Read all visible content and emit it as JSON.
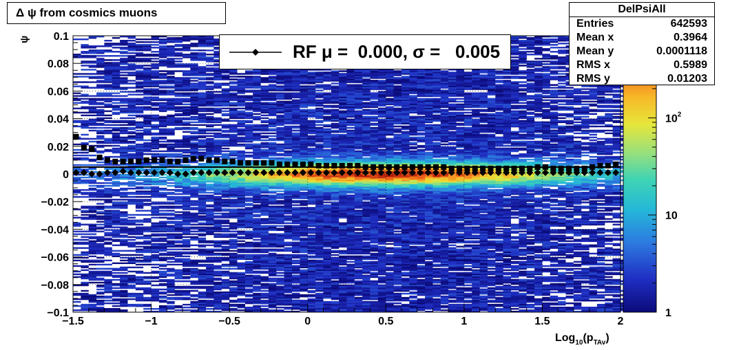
{
  "title": "Δ ψ from cosmics muons",
  "stats": {
    "name": "DelPsiAll",
    "rows": [
      {
        "label": "Entries",
        "value": "642593"
      },
      {
        "label": "Mean x",
        "value": "0.3964"
      },
      {
        "label": "Mean y",
        "value": "0.0001118"
      },
      {
        "label": "RMS x",
        "value": "0.5989"
      },
      {
        "label": "RMS y",
        "value": "0.01203"
      }
    ]
  },
  "legend": {
    "text": "RF μ =  0.000, σ =   0.005"
  },
  "colors": {
    "profile_markers": "#000000",
    "fit_line": "#000000"
  },
  "chart_data": {
    "type": "heatmap",
    "title": "Δ ψ from cosmics muons",
    "xlabel_main": "Log",
    "xlabel_sub": "10",
    "xlabel_paren": "(p",
    "xlabel_sub2": "TAv",
    "xlabel_close": ")",
    "ylabel": "ψ",
    "xlim": [
      -1.5,
      2
    ],
    "ylim": [
      -0.1,
      0.1
    ],
    "xticks": [
      "−1.5",
      "−1",
      "−0.5",
      "0",
      "0.5",
      "1",
      "1.5",
      "2"
    ],
    "xtick_values": [
      -1.5,
      -1,
      -0.5,
      0,
      0.5,
      1,
      1.5,
      2
    ],
    "yticks": [
      "−0.1",
      "−0.08",
      "−0.06",
      "−0.04",
      "−0.02",
      "0",
      "0.02",
      "0.04",
      "0.06",
      "0.08",
      "0.1"
    ],
    "ytick_values": [
      -0.1,
      -0.08,
      -0.06,
      -0.04,
      -0.02,
      0,
      0.02,
      0.04,
      0.06,
      0.08,
      0.1
    ],
    "z_scale": "log",
    "zlim": [
      1,
      700
    ],
    "zticks": [
      {
        "value": 1,
        "label": "1"
      },
      {
        "value": 10,
        "label": "10"
      },
      {
        "value": 100,
        "label": "10",
        "sup": "2"
      }
    ],
    "grid": true,
    "fit_line_y": 0.005,
    "series": [
      {
        "marker": "square",
        "x": [
          -1.48,
          -1.43,
          -1.38,
          -1.33,
          -1.28,
          -1.23,
          -1.18,
          -1.13,
          -1.08,
          -1.03,
          -0.98,
          -0.93,
          -0.88,
          -0.83,
          -0.78,
          -0.73,
          -0.68,
          -0.63,
          -0.58,
          -0.53,
          -0.48,
          -0.43,
          -0.38,
          -0.33,
          -0.28,
          -0.23,
          -0.18,
          -0.13,
          -0.08,
          -0.03,
          0.02,
          0.07,
          0.12,
          0.17,
          0.22,
          0.27,
          0.32,
          0.37,
          0.42,
          0.47,
          0.52,
          0.57,
          0.62,
          0.67,
          0.72,
          0.77,
          0.82,
          0.87,
          0.92,
          0.97,
          1.02,
          1.07,
          1.12,
          1.17,
          1.22,
          1.27,
          1.32,
          1.37,
          1.42,
          1.47,
          1.52,
          1.57,
          1.62,
          1.67,
          1.72,
          1.77,
          1.82,
          1.87,
          1.92,
          1.97
        ],
        "y": [
          0.027,
          0.019,
          0.018,
          0.012,
          0.01,
          0.009,
          0.009,
          0.009,
          0.009,
          0.01,
          0.01,
          0.01,
          0.009,
          0.009,
          0.01,
          0.011,
          0.011,
          0.01,
          0.01,
          0.009,
          0.009,
          0.008,
          0.008,
          0.008,
          0.008,
          0.008,
          0.007,
          0.007,
          0.007,
          0.007,
          0.007,
          0.006,
          0.006,
          0.006,
          0.006,
          0.006,
          0.006,
          0.005,
          0.005,
          0.005,
          0.005,
          0.005,
          0.005,
          0.005,
          0.005,
          0.005,
          0.005,
          0.005,
          0.004,
          0.004,
          0.004,
          0.004,
          0.004,
          0.004,
          0.004,
          0.004,
          0.004,
          0.004,
          0.004,
          0.005,
          0.005,
          0.004,
          0.004,
          0.004,
          0.004,
          0.004,
          0.005,
          0.006,
          0.006,
          0.007
        ]
      },
      {
        "marker": "diamond",
        "x": [
          -1.48,
          -1.43,
          -1.38,
          -1.33,
          -1.28,
          -1.23,
          -1.18,
          -1.13,
          -1.08,
          -1.03,
          -0.98,
          -0.93,
          -0.88,
          -0.83,
          -0.78,
          -0.73,
          -0.68,
          -0.63,
          -0.58,
          -0.53,
          -0.48,
          -0.43,
          -0.38,
          -0.33,
          -0.28,
          -0.23,
          -0.18,
          -0.13,
          -0.08,
          -0.03,
          0.02,
          0.07,
          0.12,
          0.17,
          0.22,
          0.27,
          0.32,
          0.37,
          0.42,
          0.47,
          0.52,
          0.57,
          0.62,
          0.67,
          0.72,
          0.77,
          0.82,
          0.87,
          0.92,
          0.97,
          1.02,
          1.07,
          1.12,
          1.17,
          1.22,
          1.27,
          1.32,
          1.37,
          1.42,
          1.47,
          1.52,
          1.57,
          1.62,
          1.67,
          1.72,
          1.77,
          1.82,
          1.87,
          1.92,
          1.97
        ],
        "y": [
          0.001,
          0.001,
          0.0,
          0.0,
          0.001,
          0.001,
          0.002,
          0.001,
          0.001,
          0.001,
          0.001,
          0.001,
          0.001,
          0.0,
          0.0,
          0.001,
          0.001,
          0.001,
          0.001,
          0.001,
          0.001,
          0.001,
          0.001,
          0.001,
          0.001,
          0.001,
          0.001,
          0.001,
          0.001,
          0.001,
          0.001,
          0.001,
          0.001,
          0.001,
          0.001,
          0.001,
          0.001,
          0.001,
          0.001,
          0.001,
          0.001,
          0.001,
          0.001,
          0.001,
          0.001,
          0.001,
          0.001,
          0.001,
          0.001,
          0.001,
          0.001,
          0.001,
          0.001,
          0.001,
          0.001,
          0.001,
          0.001,
          0.001,
          0.001,
          0.001,
          0.001,
          0.001,
          0.001,
          0.001,
          0.001,
          0.001,
          0.001,
          0.001,
          0.001,
          0.001
        ]
      }
    ]
  }
}
